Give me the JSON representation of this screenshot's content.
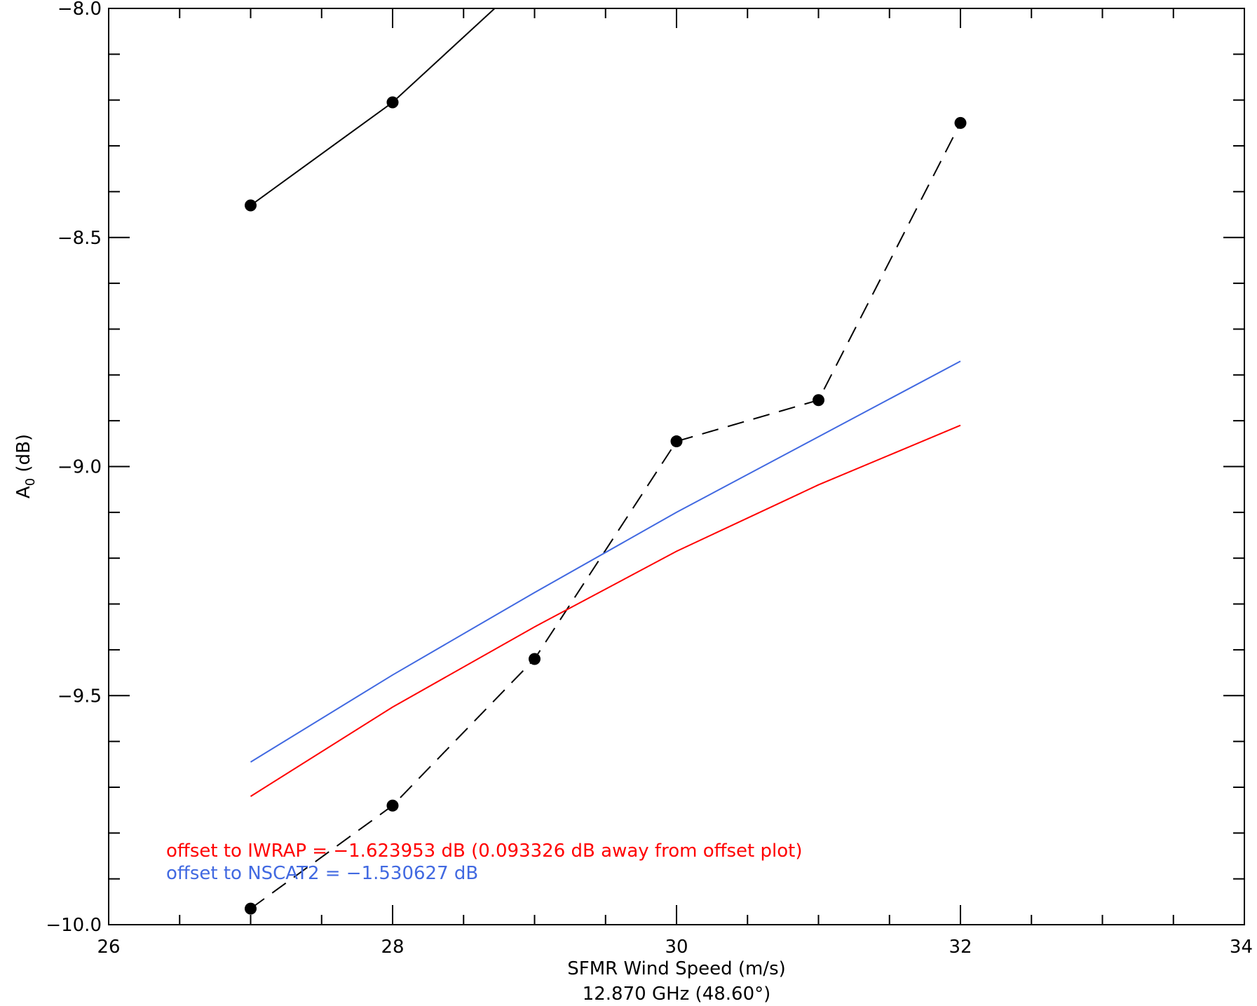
{
  "chart_data": {
    "type": "line",
    "xlabel": "SFMR Wind Speed (m/s)",
    "subtitle": "12.870 GHz (48.60°)",
    "ylabel_main": "A",
    "ylabel_sub": "0",
    "ylabel_unit": " (dB)",
    "xlim": [
      26,
      34
    ],
    "ylim": [
      -10.0,
      -8.0
    ],
    "xticks": [
      26,
      28,
      30,
      32,
      34
    ],
    "xtick_labels": [
      "26",
      "28",
      "30",
      "32",
      "34"
    ],
    "yticks": [
      -10.0,
      -9.5,
      -9.0,
      -8.5,
      -8.0
    ],
    "ytick_labels": [
      "−10.0",
      "−9.5",
      "−9.0",
      "−8.5",
      "−8.0"
    ],
    "x_minor_step": 0.5,
    "y_minor_step": 0.1,
    "grid": false,
    "series": [
      {
        "style": "solid",
        "color": "#000000",
        "markers": true,
        "x": [
          27,
          28,
          29
        ],
        "y": [
          -8.43,
          -8.205,
          -7.92
        ]
      },
      {
        "style": "dashed",
        "color": "#000000",
        "markers": true,
        "x": [
          27,
          28,
          29,
          30,
          31,
          32
        ],
        "y": [
          -9.965,
          -9.74,
          -9.42,
          -8.945,
          -8.855,
          -8.25
        ]
      },
      {
        "style": "solid",
        "color": "#ff0000",
        "markers": false,
        "x": [
          27,
          28,
          29,
          30,
          31,
          32
        ],
        "y": [
          -9.72,
          -9.525,
          -9.35,
          -9.185,
          -9.04,
          -8.91
        ]
      },
      {
        "style": "solid",
        "color": "#4169e1",
        "markers": false,
        "x": [
          27,
          28,
          29,
          30,
          31,
          32
        ],
        "y": [
          -9.645,
          -9.455,
          -9.275,
          -9.1,
          -8.935,
          -8.77
        ]
      }
    ],
    "annotations": [
      {
        "text": "offset to IWRAP = −1.623953 dB (0.093326 dB away from offset plot)",
        "color": "#ff0000"
      },
      {
        "text": "offset to NSCAT2 = −1.530627 dB",
        "color": "#4169e1"
      }
    ]
  }
}
